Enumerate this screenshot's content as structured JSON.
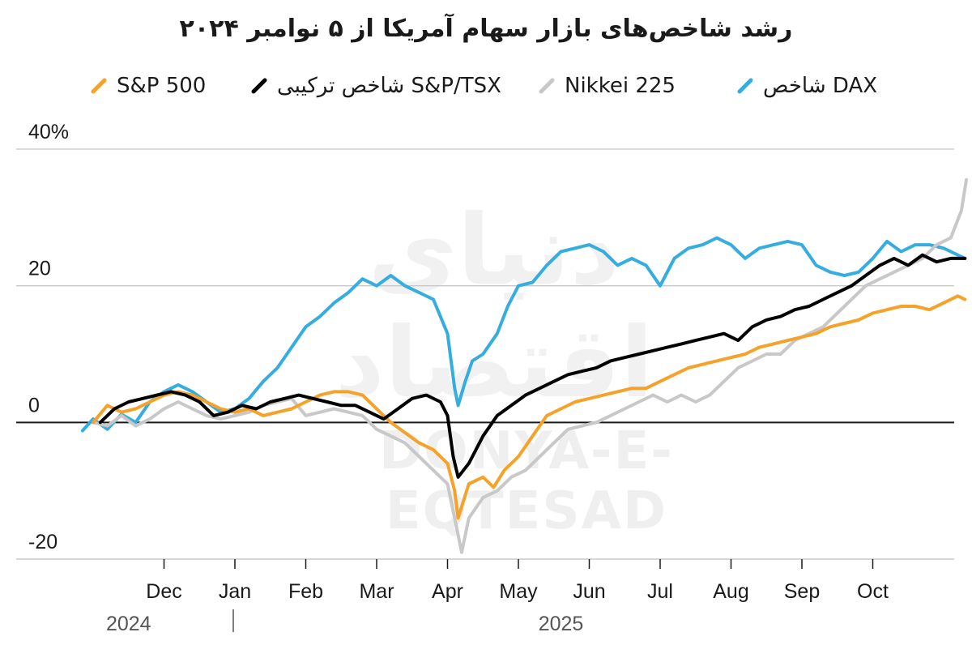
{
  "chart_data": {
    "type": "line",
    "title": "رشد شاخص‌های بازار سهام آمریکا از ۵ نوامبر ۲۰۲۴",
    "xlabel": "",
    "ylabel": "",
    "ylim": [
      -20,
      40
    ],
    "yticks": [
      {
        "value": 40,
        "label": "40%"
      },
      {
        "value": 20,
        "label": "20"
      },
      {
        "value": 0,
        "label": "0"
      },
      {
        "value": -20,
        "label": "-20"
      }
    ],
    "xticks": [
      {
        "month": 1,
        "label": "Dec"
      },
      {
        "month": 2,
        "label": "Jan"
      },
      {
        "month": 3,
        "label": "Feb"
      },
      {
        "month": 4,
        "label": "Mar"
      },
      {
        "month": 5,
        "label": "Apr"
      },
      {
        "month": 6,
        "label": "May"
      },
      {
        "month": 7,
        "label": "Jun"
      },
      {
        "month": 8,
        "label": "Jul"
      },
      {
        "month": 9,
        "label": "Aug"
      },
      {
        "month": 10,
        "label": "Sep"
      },
      {
        "month": 11,
        "label": "Oct"
      }
    ],
    "years": [
      {
        "month": 0.5,
        "label": "2024"
      },
      {
        "month": 6.6,
        "label": "2025"
      }
    ],
    "x_month_range": [
      0,
      12.35
    ],
    "legend_placement": "top",
    "series": [
      {
        "name": "شاخص DAX",
        "color": "#35ade0",
        "points": [
          [
            -0.15,
            -1.2
          ],
          [
            0,
            0.5
          ],
          [
            0.2,
            -1
          ],
          [
            0.4,
            1.2
          ],
          [
            0.6,
            0
          ],
          [
            0.8,
            3
          ],
          [
            1,
            4.5
          ],
          [
            1.2,
            5.5
          ],
          [
            1.4,
            4.5
          ],
          [
            1.6,
            3
          ],
          [
            1.8,
            1.5
          ],
          [
            2,
            2
          ],
          [
            2.2,
            3.5
          ],
          [
            2.4,
            6
          ],
          [
            2.6,
            8
          ],
          [
            2.8,
            11
          ],
          [
            3,
            14
          ],
          [
            3.2,
            15.5
          ],
          [
            3.4,
            17.5
          ],
          [
            3.6,
            19
          ],
          [
            3.8,
            21
          ],
          [
            4,
            20
          ],
          [
            4.2,
            21.5
          ],
          [
            4.4,
            20
          ],
          [
            4.6,
            19
          ],
          [
            4.8,
            18
          ],
          [
            5,
            13
          ],
          [
            5.1,
            5
          ],
          [
            5.15,
            2.5
          ],
          [
            5.25,
            6
          ],
          [
            5.35,
            9
          ],
          [
            5.5,
            10
          ],
          [
            5.7,
            13
          ],
          [
            5.85,
            17
          ],
          [
            6,
            20
          ],
          [
            6.2,
            20.5
          ],
          [
            6.4,
            23
          ],
          [
            6.6,
            25
          ],
          [
            6.8,
            25.5
          ],
          [
            7,
            26
          ],
          [
            7.2,
            25
          ],
          [
            7.4,
            23
          ],
          [
            7.6,
            24
          ],
          [
            7.8,
            23
          ],
          [
            8,
            20
          ],
          [
            8.2,
            24
          ],
          [
            8.4,
            25.5
          ],
          [
            8.6,
            26
          ],
          [
            8.8,
            27
          ],
          [
            9,
            26
          ],
          [
            9.2,
            24
          ],
          [
            9.4,
            25.5
          ],
          [
            9.6,
            26
          ],
          [
            9.8,
            26.5
          ],
          [
            10,
            26
          ],
          [
            10.2,
            23
          ],
          [
            10.4,
            22
          ],
          [
            10.6,
            21.5
          ],
          [
            10.8,
            22
          ],
          [
            11,
            24
          ],
          [
            11.2,
            26.5
          ],
          [
            11.4,
            25
          ],
          [
            11.6,
            26
          ],
          [
            11.8,
            26
          ],
          [
            12,
            25.5
          ],
          [
            12.2,
            24.5
          ],
          [
            12.3,
            24
          ]
        ]
      },
      {
        "name": "Nikkei 225",
        "color": "#c8c8c8",
        "points": [
          [
            0,
            0
          ],
          [
            0.2,
            -0.5
          ],
          [
            0.4,
            1
          ],
          [
            0.6,
            -0.5
          ],
          [
            0.8,
            0.5
          ],
          [
            1,
            2
          ],
          [
            1.2,
            3
          ],
          [
            1.4,
            2
          ],
          [
            1.6,
            1
          ],
          [
            1.8,
            0.5
          ],
          [
            2,
            1
          ],
          [
            2.2,
            1.5
          ],
          [
            2.4,
            2.5
          ],
          [
            2.6,
            3
          ],
          [
            2.8,
            3.5
          ],
          [
            3,
            1
          ],
          [
            3.2,
            1.5
          ],
          [
            3.4,
            2
          ],
          [
            3.6,
            1.5
          ],
          [
            3.8,
            1
          ],
          [
            4,
            -1
          ],
          [
            4.2,
            -2
          ],
          [
            4.4,
            -3
          ],
          [
            4.6,
            -5
          ],
          [
            4.8,
            -7
          ],
          [
            5,
            -9
          ],
          [
            5.1,
            -14
          ],
          [
            5.2,
            -19
          ],
          [
            5.3,
            -14
          ],
          [
            5.5,
            -11
          ],
          [
            5.7,
            -10
          ],
          [
            5.9,
            -8
          ],
          [
            6.1,
            -7
          ],
          [
            6.3,
            -5
          ],
          [
            6.5,
            -3
          ],
          [
            6.7,
            -1
          ],
          [
            6.9,
            -0.5
          ],
          [
            7.1,
            0
          ],
          [
            7.3,
            1
          ],
          [
            7.5,
            2
          ],
          [
            7.7,
            3
          ],
          [
            7.9,
            4
          ],
          [
            8.1,
            3
          ],
          [
            8.3,
            4
          ],
          [
            8.5,
            3
          ],
          [
            8.7,
            4
          ],
          [
            8.9,
            6
          ],
          [
            9.1,
            8
          ],
          [
            9.3,
            9
          ],
          [
            9.5,
            10
          ],
          [
            9.7,
            10
          ],
          [
            9.9,
            12
          ],
          [
            10.1,
            13
          ],
          [
            10.3,
            14
          ],
          [
            10.5,
            16
          ],
          [
            10.7,
            18
          ],
          [
            10.9,
            20
          ],
          [
            11.1,
            21
          ],
          [
            11.3,
            22
          ],
          [
            11.5,
            23
          ],
          [
            11.7,
            24
          ],
          [
            11.9,
            26
          ],
          [
            12.1,
            27
          ],
          [
            12.25,
            31
          ],
          [
            12.32,
            35.5
          ]
        ]
      },
      {
        "name": "S&P 500",
        "color": "#f5a22b",
        "points": [
          [
            0,
            0
          ],
          [
            0.2,
            2.5
          ],
          [
            0.4,
            1.5
          ],
          [
            0.6,
            2
          ],
          [
            0.8,
            3
          ],
          [
            1,
            4
          ],
          [
            1.2,
            4.5
          ],
          [
            1.4,
            4
          ],
          [
            1.6,
            3
          ],
          [
            1.8,
            2
          ],
          [
            2,
            1.5
          ],
          [
            2.2,
            2
          ],
          [
            2.4,
            1
          ],
          [
            2.6,
            1.5
          ],
          [
            2.8,
            2
          ],
          [
            3,
            3
          ],
          [
            3.2,
            4
          ],
          [
            3.4,
            4.5
          ],
          [
            3.6,
            4.5
          ],
          [
            3.8,
            4
          ],
          [
            4,
            2
          ],
          [
            4.2,
            0
          ],
          [
            4.4,
            -1.5
          ],
          [
            4.6,
            -3
          ],
          [
            4.8,
            -4
          ],
          [
            5,
            -6
          ],
          [
            5.1,
            -10
          ],
          [
            5.15,
            -14
          ],
          [
            5.3,
            -9
          ],
          [
            5.5,
            -8
          ],
          [
            5.65,
            -9.5
          ],
          [
            5.8,
            -7
          ],
          [
            6,
            -5
          ],
          [
            6.2,
            -2
          ],
          [
            6.4,
            1
          ],
          [
            6.6,
            2
          ],
          [
            6.8,
            3
          ],
          [
            7,
            3.5
          ],
          [
            7.2,
            4
          ],
          [
            7.4,
            4.5
          ],
          [
            7.6,
            5
          ],
          [
            7.8,
            5
          ],
          [
            8,
            6
          ],
          [
            8.2,
            7
          ],
          [
            8.4,
            8
          ],
          [
            8.6,
            8.5
          ],
          [
            8.8,
            9
          ],
          [
            9,
            9.5
          ],
          [
            9.2,
            10
          ],
          [
            9.4,
            11
          ],
          [
            9.6,
            11.5
          ],
          [
            9.8,
            12
          ],
          [
            10,
            12.5
          ],
          [
            10.2,
            13
          ],
          [
            10.4,
            14
          ],
          [
            10.6,
            14.5
          ],
          [
            10.8,
            15
          ],
          [
            11,
            16
          ],
          [
            11.2,
            16.5
          ],
          [
            11.4,
            17
          ],
          [
            11.6,
            17
          ],
          [
            11.8,
            16.5
          ],
          [
            12,
            17.5
          ],
          [
            12.2,
            18.5
          ],
          [
            12.3,
            18
          ]
        ]
      },
      {
        "name": "شاخص ترکیبی S&P/TSX",
        "color": "#000000",
        "points": [
          [
            0.1,
            0
          ],
          [
            0.3,
            2
          ],
          [
            0.5,
            3
          ],
          [
            0.7,
            3.5
          ],
          [
            0.9,
            4
          ],
          [
            1.1,
            4.5
          ],
          [
            1.3,
            4
          ],
          [
            1.5,
            3
          ],
          [
            1.7,
            1
          ],
          [
            1.9,
            1.5
          ],
          [
            2.1,
            2.5
          ],
          [
            2.3,
            2
          ],
          [
            2.5,
            3
          ],
          [
            2.7,
            3.5
          ],
          [
            2.9,
            4
          ],
          [
            3.1,
            3.5
          ],
          [
            3.3,
            3
          ],
          [
            3.5,
            2.5
          ],
          [
            3.7,
            2.5
          ],
          [
            3.9,
            1.5
          ],
          [
            4.1,
            0.5
          ],
          [
            4.3,
            2
          ],
          [
            4.5,
            3.5
          ],
          [
            4.7,
            4
          ],
          [
            4.9,
            3
          ],
          [
            5,
            1
          ],
          [
            5.08,
            -5
          ],
          [
            5.15,
            -8
          ],
          [
            5.3,
            -6
          ],
          [
            5.5,
            -2
          ],
          [
            5.7,
            1
          ],
          [
            5.9,
            2.5
          ],
          [
            6.1,
            4
          ],
          [
            6.3,
            5
          ],
          [
            6.5,
            6
          ],
          [
            6.7,
            7
          ],
          [
            6.9,
            7.5
          ],
          [
            7.1,
            8
          ],
          [
            7.3,
            9
          ],
          [
            7.5,
            9.5
          ],
          [
            7.7,
            10
          ],
          [
            7.9,
            10.5
          ],
          [
            8.1,
            11
          ],
          [
            8.3,
            11.5
          ],
          [
            8.5,
            12
          ],
          [
            8.7,
            12.5
          ],
          [
            8.9,
            13
          ],
          [
            9.1,
            12
          ],
          [
            9.3,
            14
          ],
          [
            9.5,
            15
          ],
          [
            9.7,
            15.5
          ],
          [
            9.9,
            16.5
          ],
          [
            10.1,
            17
          ],
          [
            10.3,
            18
          ],
          [
            10.5,
            19
          ],
          [
            10.7,
            20
          ],
          [
            10.9,
            21.5
          ],
          [
            11.1,
            23
          ],
          [
            11.3,
            24
          ],
          [
            11.5,
            23
          ],
          [
            11.7,
            24.5
          ],
          [
            11.9,
            23.5
          ],
          [
            12.1,
            24
          ],
          [
            12.3,
            24
          ]
        ]
      }
    ]
  },
  "legend": [
    {
      "label": "شاخص DAX",
      "color": "#35ade0",
      "left": 900
    },
    {
      "label": "Nikkei 225",
      "color": "#c8c8c8",
      "left": 668
    },
    {
      "label": "شاخص ترکیبی S&P/TSX",
      "color": "#000000",
      "left": 310
    },
    {
      "label": "S&P 500",
      "color": "#f5a22b",
      "left": 112
    }
  ],
  "watermark": {
    "fa": "دنیای اقتصاد",
    "en": "DONYA-E-EQTESAD"
  }
}
